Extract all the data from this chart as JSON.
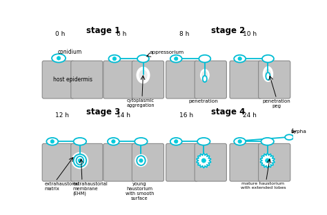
{
  "background": "#ffffff",
  "cell_fill": "#c0c0c0",
  "cell_edge": "#888888",
  "fungus_fill": "#ffffff",
  "fungus_edge": "#00bcd4",
  "nucleus_fill": "#00ccdd",
  "glow_color": "#e8e8e8",
  "stage1_label": "stage 1",
  "stage2_label": "stage 2",
  "stage3_label": "stage 3",
  "stage4_label": "stage 4",
  "lbl_conidium": "conidium",
  "lbl_host_epidermis": "host epidermis",
  "lbl_appressorium": "appressorium",
  "lbl_cytoplasmic": "cytoplasmic\naggregation",
  "lbl_penetration": "penetration",
  "lbl_pen_peg": "penetration\npeg",
  "lbl_eh_matrix": "extrahaustorial\nmatrix",
  "lbl_eh_membrane": "extrahaustorial\nmembrane\n(EHM)",
  "lbl_young_haus": "young\nhaustorium\nwith smooth\nsurface",
  "lbl_hypha": "hypha",
  "lbl_mature_haus": "mature haustorium\nwith extended lobes",
  "t0": "0 h",
  "t6": "6 h",
  "t8": "8 h",
  "t10": "10 h",
  "t12": "12 h",
  "t14": "14 h",
  "t16": "16 h",
  "t24": "24 h"
}
